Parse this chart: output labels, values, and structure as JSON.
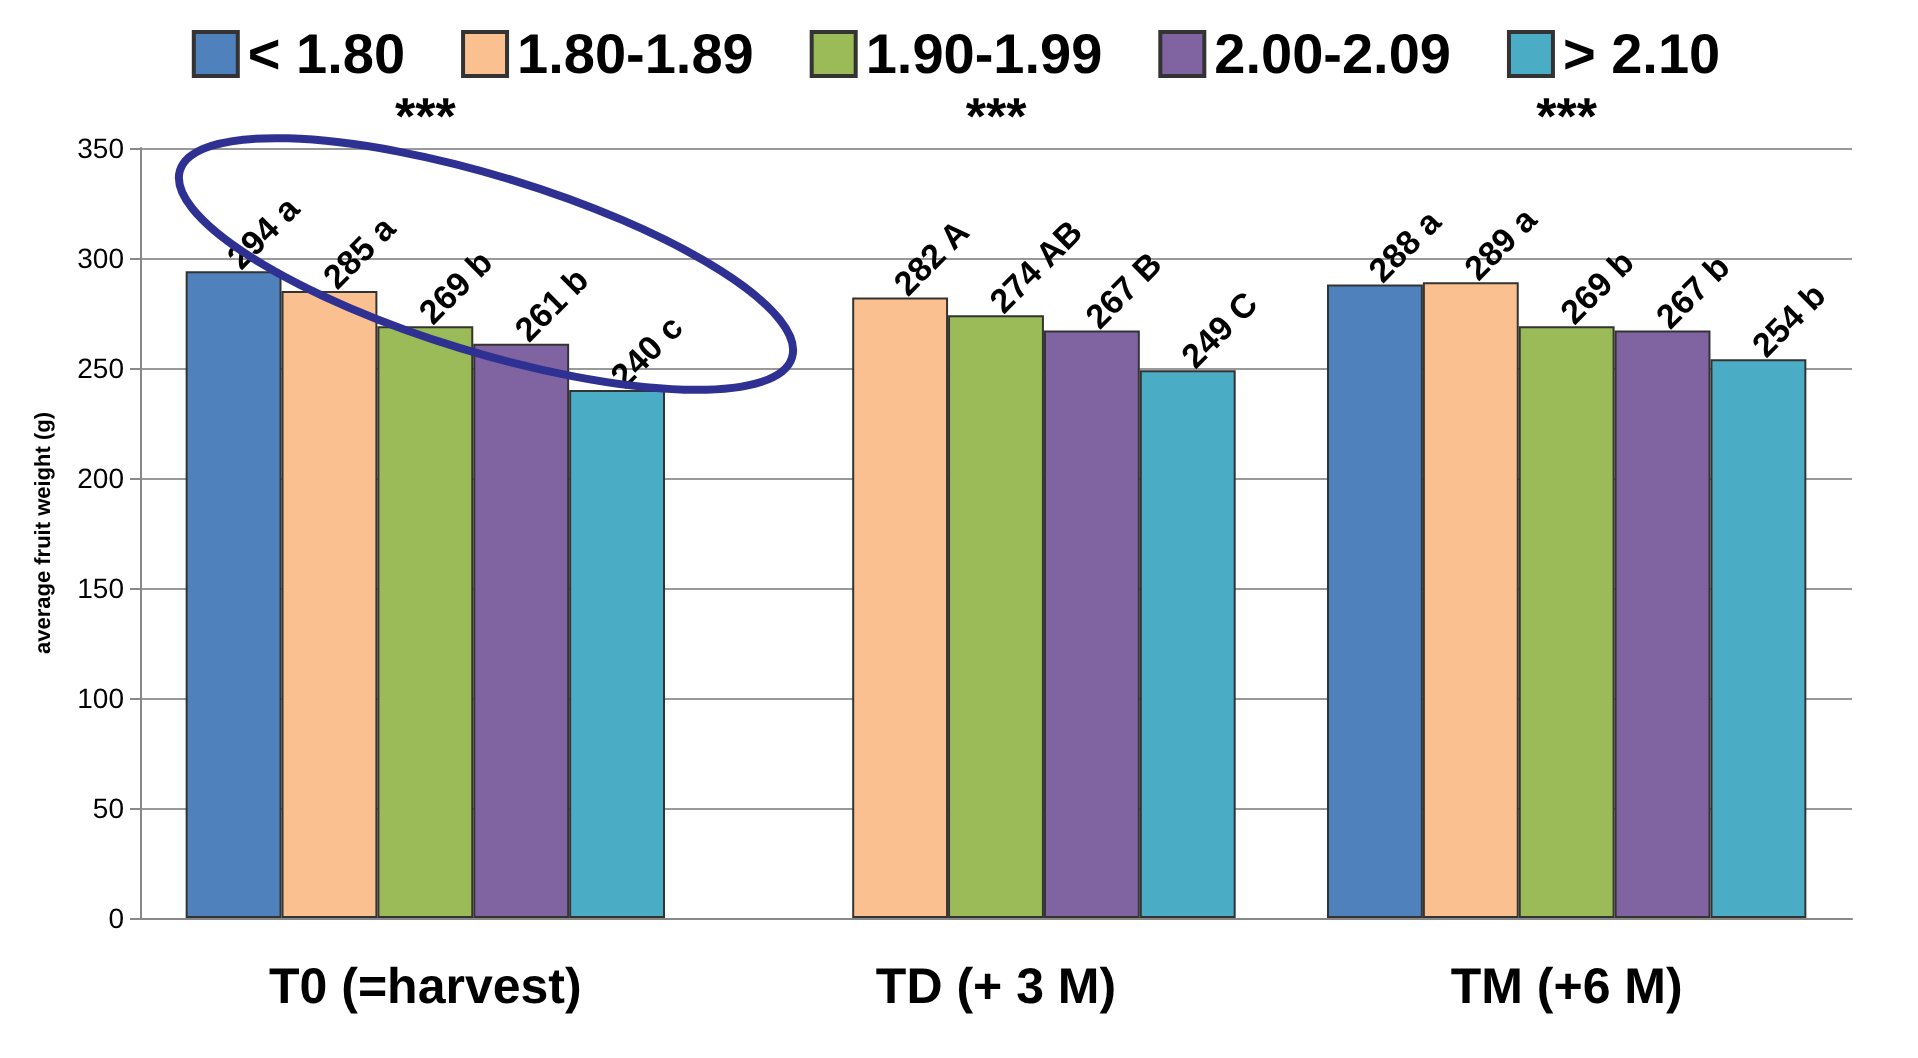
{
  "chart_data": {
    "type": "bar",
    "ylabel": "average fruit weight (g)",
    "categories": [
      "T0 (=harvest)",
      "TD (+ 3 M)",
      "TM (+6 M)"
    ],
    "series": [
      {
        "name": "< 1.80",
        "color": "#4f81bd",
        "values": [
          294,
          null,
          288
        ],
        "value_labels": [
          "294 a",
          null,
          "288 a"
        ]
      },
      {
        "name": "1.80-1.89",
        "color": "#fac090",
        "values": [
          285,
          282,
          289
        ],
        "value_labels": [
          "285 a",
          "282 A",
          "289 a"
        ]
      },
      {
        "name": "1.90-1.99",
        "color": "#9bbb59",
        "values": [
          269,
          274,
          269
        ],
        "value_labels": [
          "269 b",
          "274 AB",
          "269 b"
        ]
      },
      {
        "name": "2.00-2.09",
        "color": "#8064a2",
        "values": [
          261,
          267,
          267
        ],
        "value_labels": [
          "261 b",
          "267 B",
          "267 b"
        ]
      },
      {
        "name": "> 2.10",
        "color": "#4bacc6",
        "values": [
          240,
          249,
          254
        ],
        "value_labels": [
          "240 c",
          "249 C",
          "254 b"
        ]
      }
    ],
    "ylim": [
      0,
      350
    ],
    "yticks": [
      0,
      50,
      100,
      150,
      200,
      250,
      300,
      350
    ],
    "grid": "y",
    "legend": "top",
    "annotations": [
      "***",
      "***",
      "***"
    ]
  }
}
